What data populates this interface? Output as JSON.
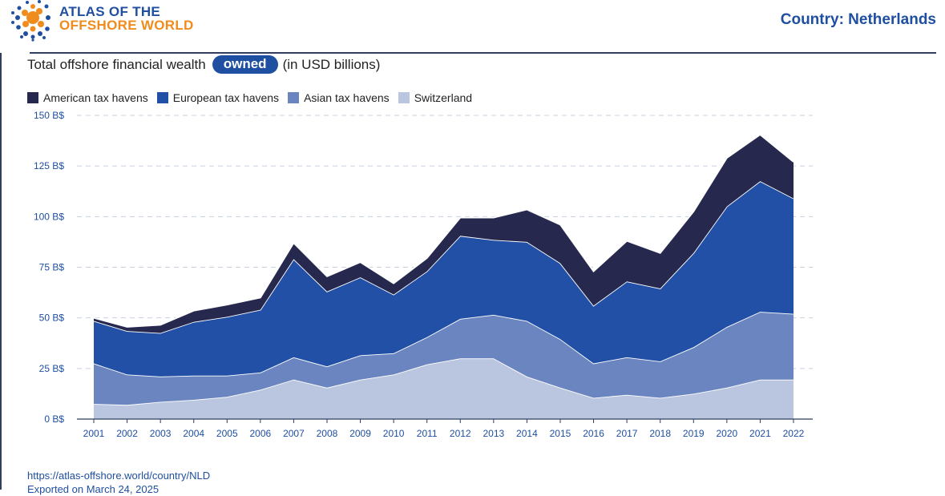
{
  "header": {
    "logo_line1": "ATLAS OF THE",
    "logo_line2": "OFFSHORE WORLD",
    "country": "Country: Netherlands"
  },
  "subtitle": {
    "prefix": "Total offshore financial wealth",
    "pill": "owned",
    "suffix": "(in USD billions)"
  },
  "colors": {
    "american": "#26284d",
    "european": "#2150a6",
    "asian": "#6b85c0",
    "switzerland": "#bac6e0",
    "accent": "#1f4fa0",
    "orange": "#f08c1e"
  },
  "footer": {
    "url": "https://atlas-offshore.world/country/NLD",
    "exported": "Exported on March 24, 2025"
  },
  "chart_data": {
    "type": "area",
    "stacked": true,
    "title": "Total offshore financial wealth owned (in USD billions)",
    "xlabel": "",
    "ylabel": "",
    "ylim": [
      0,
      150
    ],
    "yticks": [
      0,
      25,
      50,
      75,
      100,
      125,
      150
    ],
    "ytick_labels": [
      "0 B$",
      "25 B$",
      "50 B$",
      "75 B$",
      "100 B$",
      "125 B$",
      "150 B$"
    ],
    "grid": true,
    "legend_position": "top-left",
    "x": [
      2001,
      2002,
      2003,
      2004,
      2005,
      2006,
      2007,
      2008,
      2009,
      2010,
      2011,
      2012,
      2013,
      2014,
      2015,
      2016,
      2017,
      2018,
      2019,
      2020,
      2021,
      2022
    ],
    "series": [
      {
        "name": "Switzerland",
        "key": "switzerland",
        "values": [
          7.5,
          7,
          8.5,
          9.5,
          11,
          14.5,
          19.5,
          15.5,
          19.5,
          22,
          27,
          30,
          30,
          21,
          15.5,
          10.5,
          12,
          10.5,
          12.5,
          15.5,
          19.5,
          19.5
        ]
      },
      {
        "name": "Asian tax havens",
        "key": "asian",
        "values": [
          20,
          15,
          12.5,
          12,
          10.5,
          8.5,
          11,
          10.5,
          12,
          10.5,
          13.5,
          19.5,
          21.5,
          27.5,
          24,
          17,
          18.5,
          18,
          23,
          30,
          33.5,
          32.5
        ]
      },
      {
        "name": "European tax havens",
        "key": "european",
        "values": [
          21,
          21.5,
          21.5,
          26.5,
          29,
          31,
          48.5,
          37,
          38.5,
          29,
          32.5,
          41,
          37,
          39,
          37.5,
          28.5,
          37.5,
          36,
          46.5,
          59.5,
          64.5,
          57
        ]
      },
      {
        "name": "American tax havens",
        "key": "american",
        "values": [
          1.5,
          2,
          4,
          5.5,
          6,
          6,
          8,
          7.5,
          7.5,
          5.5,
          6.5,
          9,
          11,
          16,
          19,
          17,
          20,
          17.5,
          20.5,
          24,
          23,
          18
        ]
      }
    ],
    "legend_order": [
      "American tax havens",
      "European tax havens",
      "Asian tax havens",
      "Switzerland"
    ]
  }
}
